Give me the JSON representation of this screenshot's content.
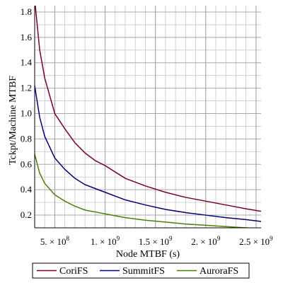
{
  "chart_data": {
    "type": "line",
    "xlabel": "Node MTBF (s)",
    "ylabel": "Tckpt/Machine MTBF",
    "xlim": [
      300000000,
      2550000000
    ],
    "ylim": [
      0.1,
      1.85
    ],
    "grid": true,
    "legend_placement": "bottom",
    "x_ticks": [
      {
        "value": 500000000,
        "mantissa": "5.",
        "exponent": "8"
      },
      {
        "value": 1000000000,
        "mantissa": "1.",
        "exponent": "9"
      },
      {
        "value": 1500000000,
        "mantissa": "1.5",
        "exponent": "9"
      },
      {
        "value": 2000000000,
        "mantissa": "2.",
        "exponent": "9"
      },
      {
        "value": 2500000000,
        "mantissa": "2.5",
        "exponent": "9"
      }
    ],
    "times_glyph": "×",
    "base": "10",
    "y_ticks": [
      0.2,
      0.4,
      0.6,
      0.8,
      1.0,
      1.2,
      1.4,
      1.6,
      1.8
    ],
    "y_tick_labels": [
      "0.2",
      "0.4",
      "0.6",
      "0.8",
      "1.0",
      "1.2",
      "1.4",
      "1.6",
      "1.8"
    ],
    "series": [
      {
        "name": "CoriFS",
        "color": "#800020",
        "x": [
          300000000,
          350000000,
          400000000,
          500000000,
          600000000,
          700000000,
          800000000,
          900000000,
          1000000000,
          1200000000,
          1400000000,
          1600000000,
          1800000000,
          2000000000,
          2200000000,
          2400000000,
          2550000000
        ],
        "y": [
          1.9,
          1.5,
          1.28,
          1.0,
          0.88,
          0.77,
          0.69,
          0.63,
          0.59,
          0.49,
          0.43,
          0.38,
          0.34,
          0.31,
          0.28,
          0.25,
          0.23
        ]
      },
      {
        "name": "SummitFS",
        "color": "#000080",
        "x": [
          300000000,
          350000000,
          400000000,
          500000000,
          600000000,
          700000000,
          800000000,
          900000000,
          1000000000,
          1200000000,
          1400000000,
          1600000000,
          1800000000,
          2000000000,
          2200000000,
          2400000000,
          2550000000
        ],
        "y": [
          1.22,
          0.97,
          0.82,
          0.65,
          0.56,
          0.49,
          0.44,
          0.41,
          0.38,
          0.32,
          0.28,
          0.245,
          0.22,
          0.2,
          0.18,
          0.165,
          0.15
        ]
      },
      {
        "name": "AuroraFS",
        "color": "#4c8000",
        "x": [
          300000000,
          350000000,
          400000000,
          500000000,
          600000000,
          700000000,
          800000000,
          900000000,
          1000000000,
          1200000000,
          1400000000,
          1600000000,
          1800000000,
          2000000000,
          2200000000,
          2400000000,
          2550000000
        ],
        "y": [
          0.68,
          0.53,
          0.45,
          0.36,
          0.31,
          0.27,
          0.24,
          0.225,
          0.21,
          0.18,
          0.16,
          0.145,
          0.13,
          0.12,
          0.11,
          0.1,
          0.095
        ]
      }
    ]
  }
}
